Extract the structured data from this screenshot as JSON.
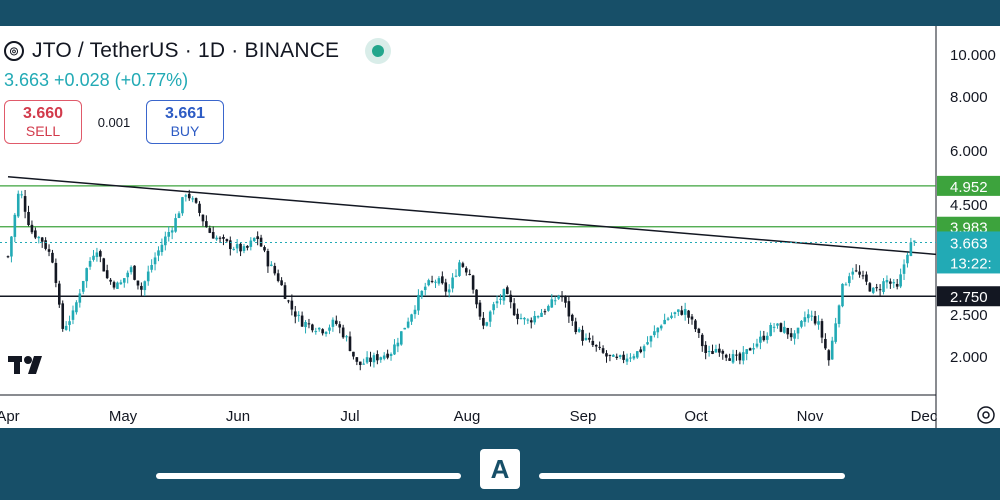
{
  "header": {
    "title": "JTO / TetherUS · 1D · BINANCE",
    "symbol_logo_icon": "jto-coin-icon",
    "price_line": "3.663 +0.028 (+0.77%)",
    "sell_price": "3.660",
    "sell_label": "SELL",
    "spread": "0.001",
    "buy_price": "3.661",
    "buy_label": "BUY",
    "status_icon": "market-open-dot-icon"
  },
  "chart_data": {
    "type": "candlestick",
    "symbol": "JTO/USDT",
    "interval": "1D",
    "exchange": "BINANCE",
    "y_scale": "log",
    "ylim": [
      1.6,
      11.5
    ],
    "y_ticks": [
      "10.000",
      "8.000",
      "6.000",
      "4.500",
      "2.500",
      "2.000"
    ],
    "x_ticks": [
      "Apr",
      "May",
      "Jun",
      "Jul",
      "Aug",
      "Sep",
      "Oct",
      "Nov",
      "Dec"
    ],
    "current_price_label": "3.663",
    "countdown_label": "13:22:",
    "horizontal_levels": [
      {
        "value": 4.952,
        "label": "4.952",
        "color": "#3da33d"
      },
      {
        "value": 3.983,
        "label": "3.983",
        "color": "#3da33d"
      },
      {
        "value": 2.75,
        "label": "2.750",
        "color": "#131722"
      }
    ],
    "trendline": {
      "from": {
        "date": "Apr 1",
        "price": 5.2
      },
      "to": {
        "date": "Nov 29",
        "price": 3.55
      }
    },
    "close_path": [
      [
        "Apr 1",
        3.4
      ],
      [
        "Apr 4",
        4.9
      ],
      [
        "Apr 7",
        3.9
      ],
      [
        "Apr 10",
        3.7
      ],
      [
        "Apr 13",
        3.3
      ],
      [
        "Apr 15",
        2.3
      ],
      [
        "Apr 18",
        2.5
      ],
      [
        "Apr 21",
        3.1
      ],
      [
        "Apr 24",
        3.6
      ],
      [
        "Apr 27",
        3.0
      ],
      [
        "Apr 30",
        2.9
      ],
      [
        "May 3",
        3.2
      ],
      [
        "May 6",
        2.85
      ],
      [
        "May 9",
        3.3
      ],
      [
        "May 12",
        3.7
      ],
      [
        "May 15",
        4.1
      ],
      [
        "May 18",
        4.8
      ],
      [
        "May 21",
        4.4
      ],
      [
        "May 24",
        3.9
      ],
      [
        "May 27",
        3.7
      ],
      [
        "May 30",
        3.6
      ],
      [
        "Jun 3",
        3.5
      ],
      [
        "Jun 6",
        3.8
      ],
      [
        "Jun 9",
        3.3
      ],
      [
        "Jun 12",
        3.0
      ],
      [
        "Jun 15",
        2.6
      ],
      [
        "Jun 18",
        2.4
      ],
      [
        "Jun 21",
        2.35
      ],
      [
        "Jun 24",
        2.3
      ],
      [
        "Jun 27",
        2.4
      ],
      [
        "Jun 30",
        2.2
      ],
      [
        "Jul 3",
        1.9
      ],
      [
        "Jul 6",
        1.95
      ],
      [
        "Jul 9",
        2.0
      ],
      [
        "Jul 12",
        2.05
      ],
      [
        "Jul 15",
        2.3
      ],
      [
        "Jul 18",
        2.6
      ],
      [
        "Jul 21",
        2.9
      ],
      [
        "Jul 24",
        3.0
      ],
      [
        "Jul 27",
        2.8
      ],
      [
        "Jul 30",
        3.3
      ],
      [
        "Aug 2",
        3.1
      ],
      [
        "Aug 5",
        2.3
      ],
      [
        "Aug 8",
        2.6
      ],
      [
        "Aug 11",
        2.8
      ],
      [
        "Aug 14",
        2.5
      ],
      [
        "Aug 17",
        2.4
      ],
      [
        "Aug 20",
        2.5
      ],
      [
        "Aug 23",
        2.6
      ],
      [
        "Aug 26",
        2.8
      ],
      [
        "Aug 29",
        2.4
      ],
      [
        "Sep 1",
        2.2
      ],
      [
        "Sep 4",
        2.1
      ],
      [
        "Sep 7",
        2.0
      ],
      [
        "Sep 10",
        1.95
      ],
      [
        "Sep 13",
        2.0
      ],
      [
        "Sep 16",
        2.05
      ],
      [
        "Sep 19",
        2.2
      ],
      [
        "Sep 22",
        2.4
      ],
      [
        "Sep 25",
        2.5
      ],
      [
        "Sep 28",
        2.55
      ],
      [
        "Oct 1",
        2.3
      ],
      [
        "Oct 4",
        2.0
      ],
      [
        "Oct 7",
        2.1
      ],
      [
        "Oct 10",
        2.0
      ],
      [
        "Oct 13",
        1.95
      ],
      [
        "Oct 16",
        2.1
      ],
      [
        "Oct 19",
        2.2
      ],
      [
        "Oct 22",
        2.35
      ],
      [
        "Oct 25",
        2.3
      ],
      [
        "Oct 28",
        2.2
      ],
      [
        "Oct 31",
        2.5
      ],
      [
        "Nov 3",
        2.4
      ],
      [
        "Nov 6",
        1.95
      ],
      [
        "Nov 9",
        2.8
      ],
      [
        "Nov 12",
        3.2
      ],
      [
        "Nov 15",
        3.0
      ],
      [
        "Nov 18",
        2.8
      ],
      [
        "Nov 21",
        3.0
      ],
      [
        "Nov 24",
        2.85
      ],
      [
        "Nov 27",
        3.6
      ],
      [
        "Nov 29",
        3.663
      ]
    ]
  },
  "footer": {
    "app_logo_text": "A"
  },
  "colors": {
    "frame": "#174f68",
    "up": "#22aab5",
    "down": "#131722",
    "level": "#3da33d"
  }
}
